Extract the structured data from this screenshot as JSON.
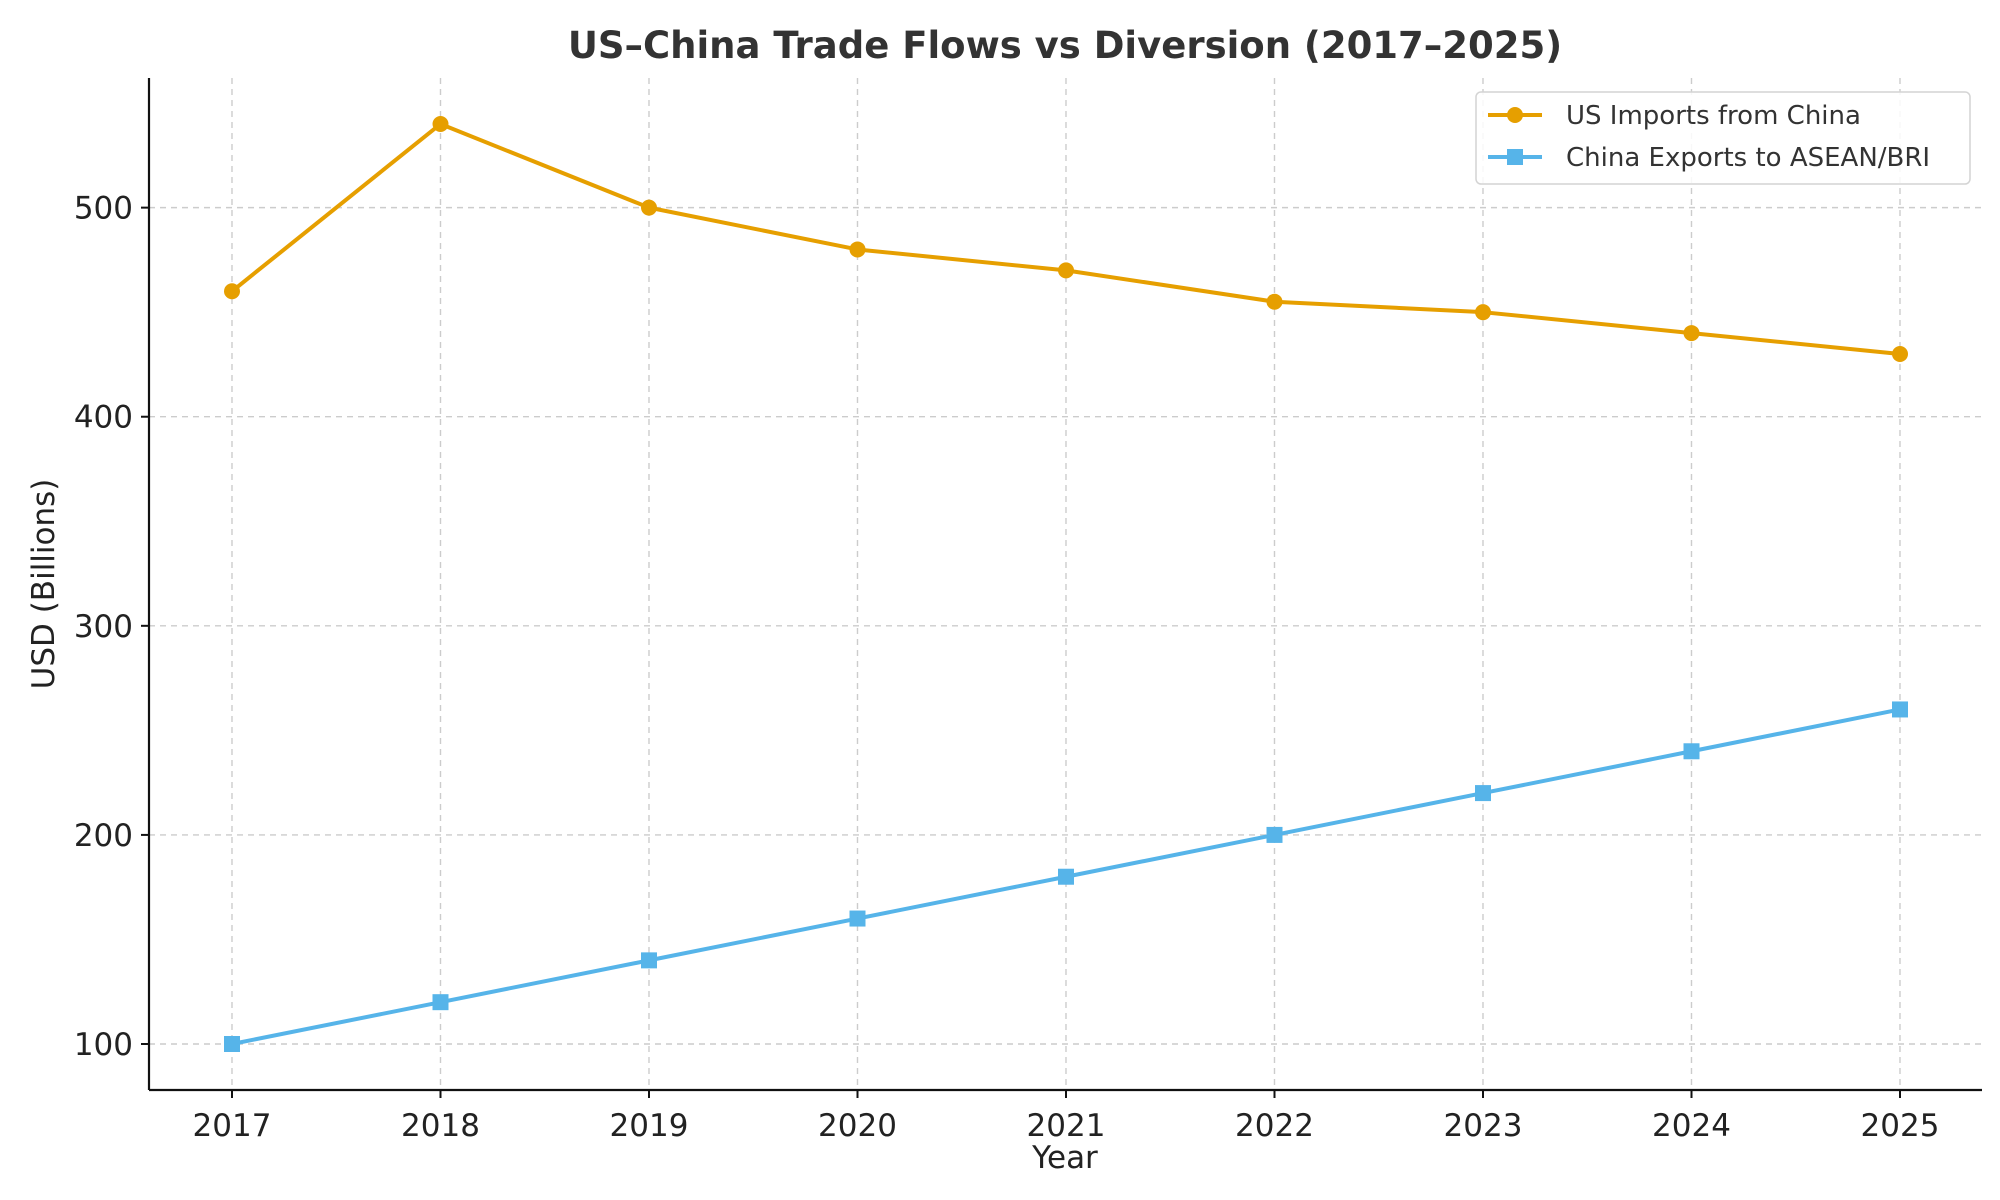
{
  "chart_data": {
    "type": "line",
    "title": "US–China Trade Flows vs Diversion (2017–2025)",
    "xlabel": "Year",
    "ylabel": "USD (Billions)",
    "x": [
      2017,
      2018,
      2019,
      2020,
      2021,
      2022,
      2023,
      2024,
      2025
    ],
    "xticks": [
      "2017",
      "2018",
      "2019",
      "2020",
      "2021",
      "2022",
      "2023",
      "2024",
      "2025"
    ],
    "ylim": [
      78,
      562
    ],
    "yticks": [
      100,
      200,
      300,
      400,
      500
    ],
    "ytick_labels": [
      "100",
      "200",
      "300",
      "400",
      "500"
    ],
    "grid": true,
    "legend_position": "top-right",
    "series": [
      {
        "name": "US Imports from China",
        "values": [
          460,
          540,
          500,
          480,
          470,
          455,
          450,
          440,
          430
        ],
        "color": "#E69F00",
        "marker": "circle"
      },
      {
        "name": "China Exports to ASEAN/BRI",
        "values": [
          100,
          120,
          140,
          160,
          180,
          200,
          220,
          240,
          260
        ],
        "color": "#56B4E9",
        "marker": "square"
      }
    ]
  }
}
